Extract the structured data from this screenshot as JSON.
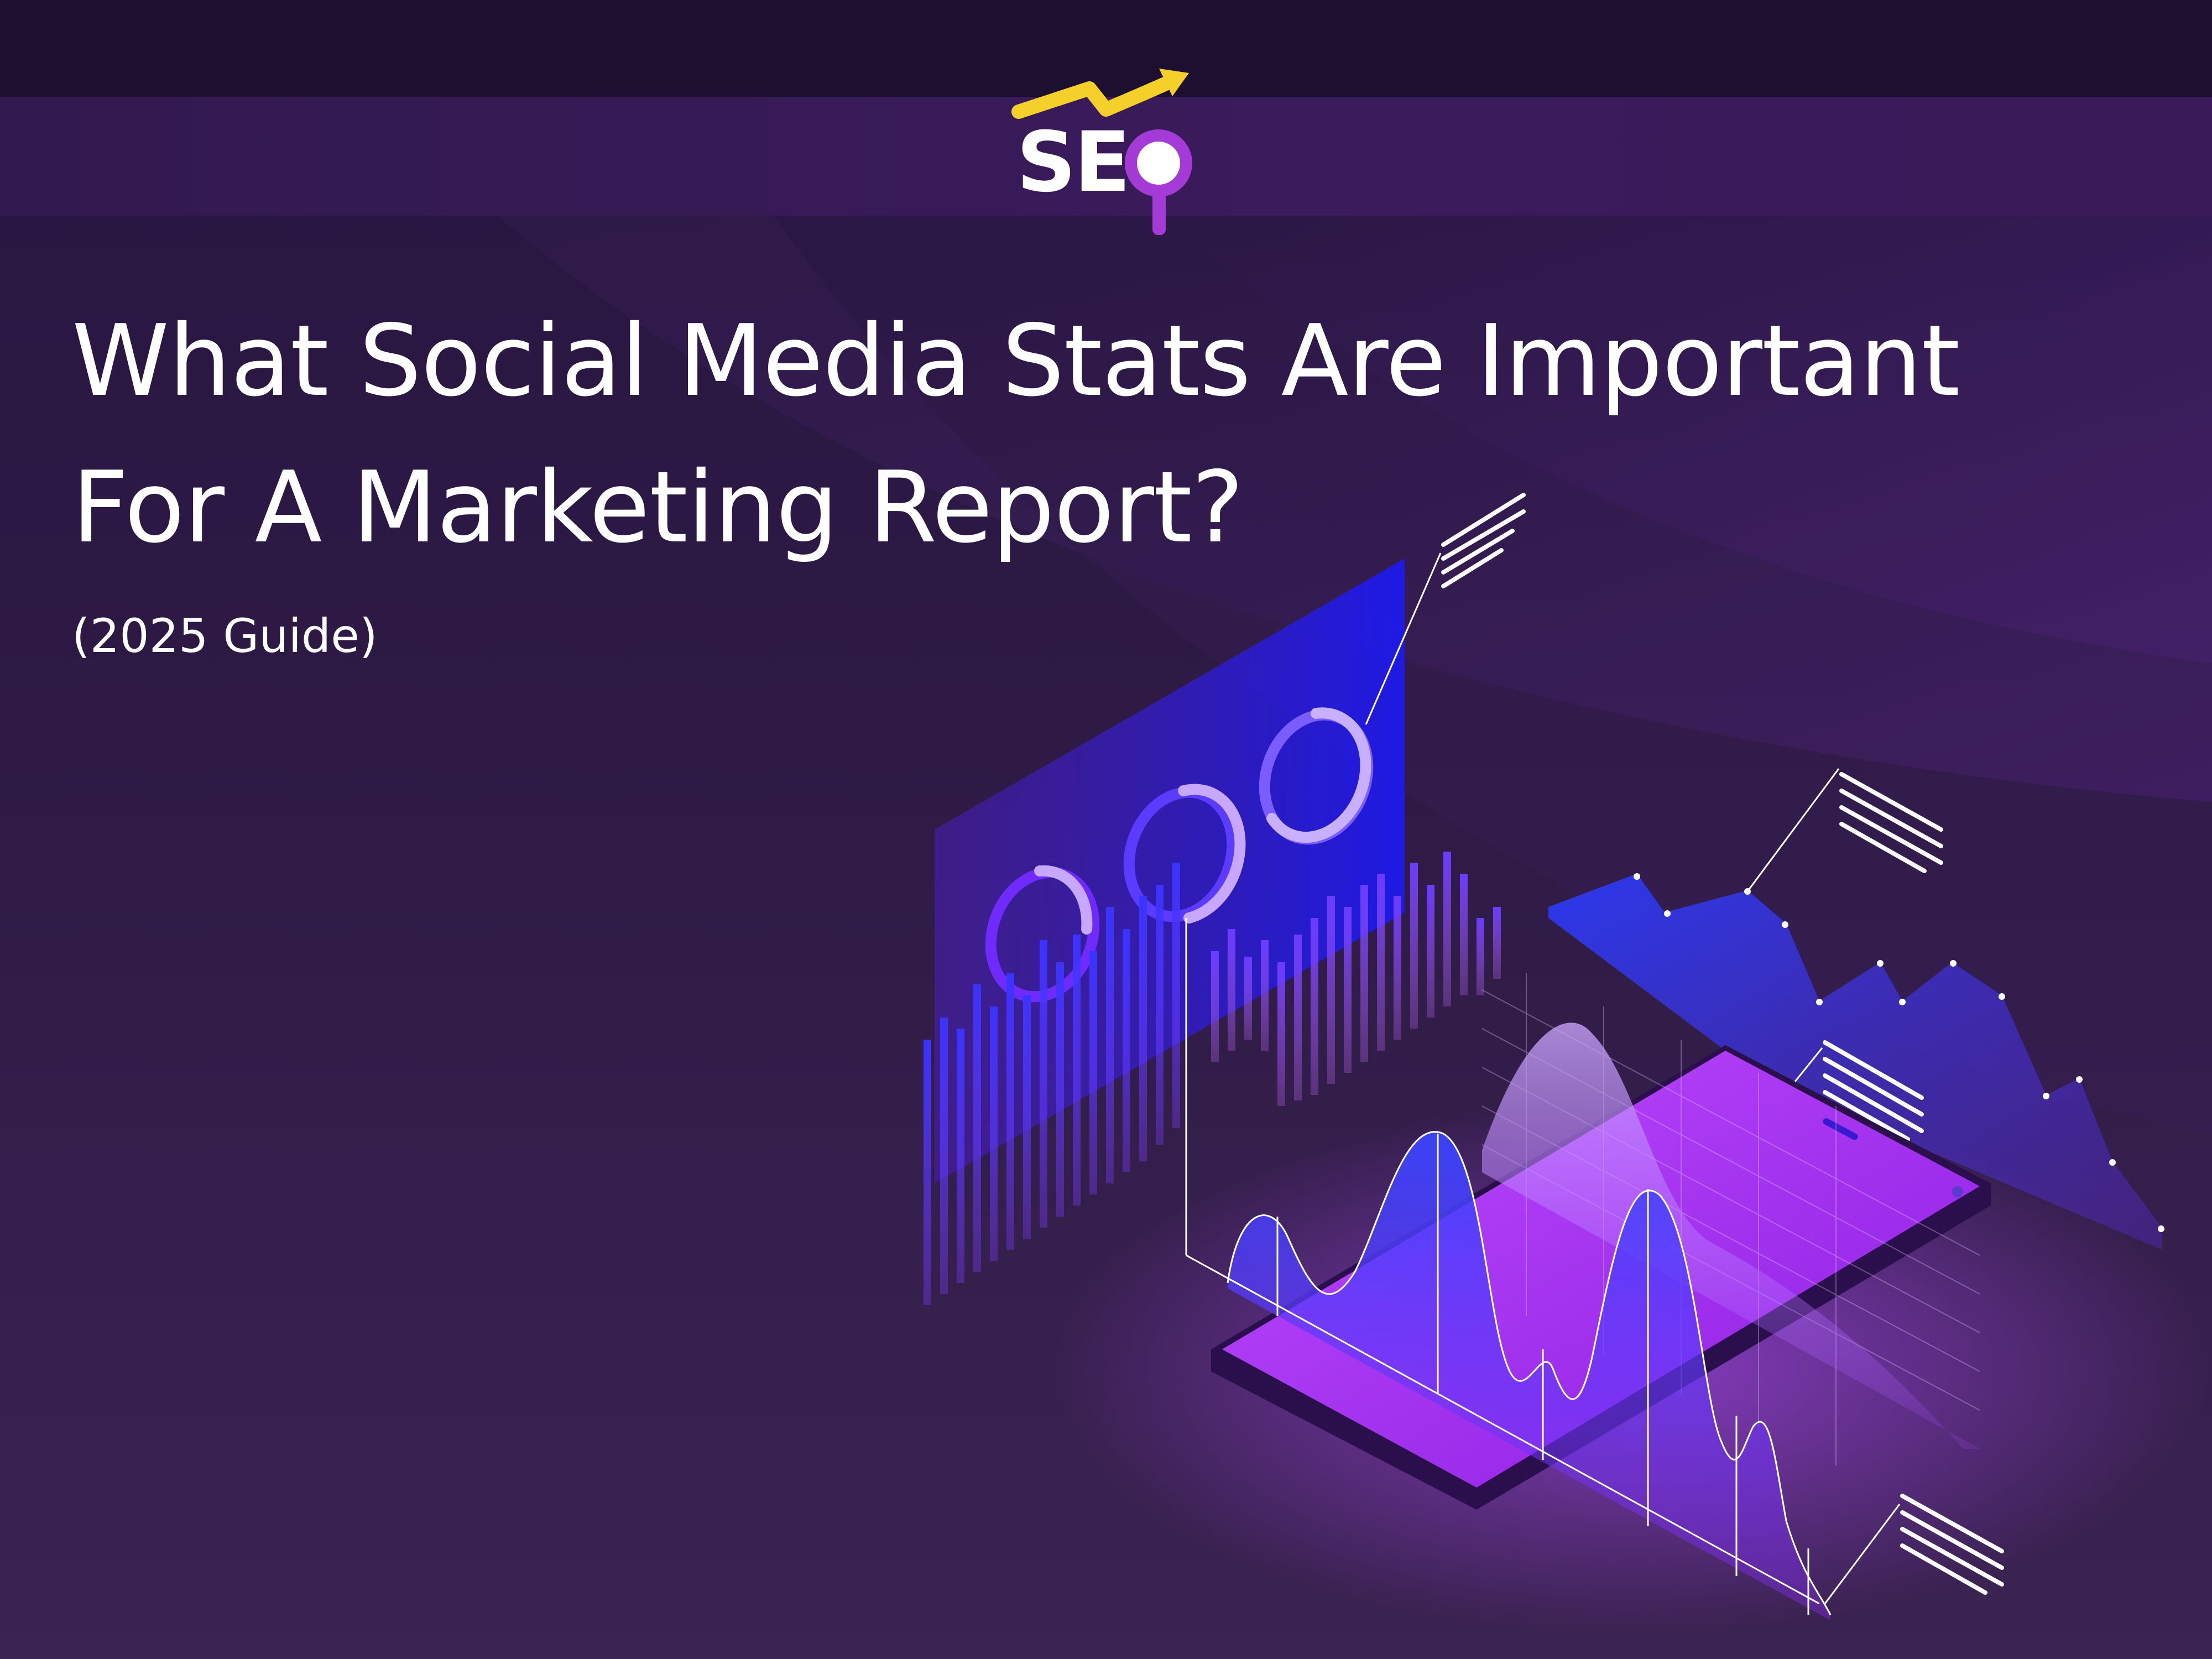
{
  "brand": {
    "logo_text": "SEO",
    "logo_icon": "magnifier-trend-arrow-icon",
    "colors": {
      "accent_yellow": "#f5cf2a",
      "accent_purple": "#a43bd6",
      "white": "#ffffff"
    }
  },
  "headline": {
    "line1": "What Social Media Stats Are Important",
    "line2": "For A Marketing Report?"
  },
  "subtitle": "(2025 Guide)",
  "illustration": {
    "icon": "analytics-dashboard-smartphone-illustration",
    "colors": {
      "background": "#2e1a45",
      "screen_glow": "#b23cff",
      "blue": "#2a33ff",
      "violet": "#7a3cff"
    }
  }
}
